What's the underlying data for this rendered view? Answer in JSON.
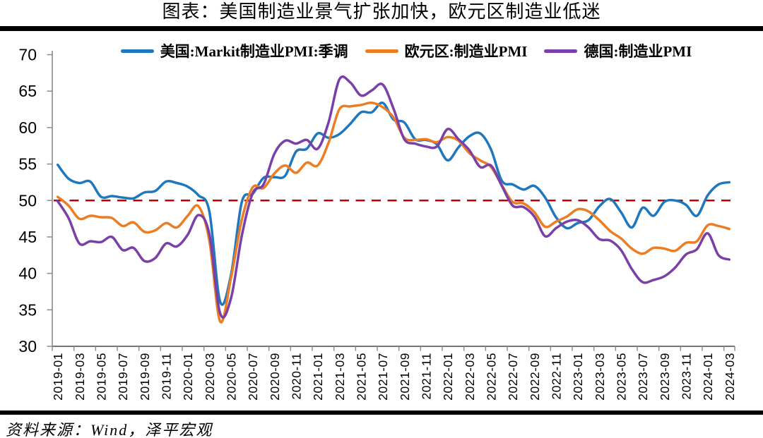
{
  "title": "图表：美国制造业景气扩张加快，欧元区制造业低迷",
  "source": "资料来源：Wind，泽平宏观",
  "colors": {
    "us_line": "#1F78BE",
    "eurozone_line": "#ED7D23",
    "germany_line": "#7B3FA8",
    "reference_line": "#C00000",
    "y_axis": "#8C8C8C",
    "x_axis": "#757575",
    "text": "#000000",
    "divider": "#000000"
  },
  "chart_data": {
    "type": "line",
    "title": "图表：美国制造业景气扩张加快，欧元区制造业低迷",
    "xlabel": "",
    "ylabel": "",
    "ylim": [
      30,
      70
    ],
    "ytick_step": 5,
    "yticks": [
      30,
      35,
      40,
      45,
      50,
      55,
      60,
      65,
      70
    ],
    "xtick_every": 2,
    "grid": false,
    "legend_position": "top",
    "smoothed": true,
    "reference_line": {
      "value": 50,
      "style": "dashed",
      "color": "#C00000"
    },
    "x": [
      "2019-01",
      "2019-02",
      "2019-03",
      "2019-04",
      "2019-05",
      "2019-06",
      "2019-07",
      "2019-08",
      "2019-09",
      "2019-10",
      "2019-11",
      "2019-12",
      "2020-01",
      "2020-02",
      "2020-03",
      "2020-04",
      "2020-05",
      "2020-06",
      "2020-07",
      "2020-08",
      "2020-09",
      "2020-10",
      "2020-11",
      "2020-12",
      "2021-01",
      "2021-02",
      "2021-03",
      "2021-04",
      "2021-05",
      "2021-06",
      "2021-07",
      "2021-08",
      "2021-09",
      "2021-10",
      "2021-11",
      "2021-12",
      "2022-01",
      "2022-02",
      "2022-03",
      "2022-04",
      "2022-05",
      "2022-06",
      "2022-07",
      "2022-08",
      "2022-09",
      "2022-10",
      "2022-11",
      "2022-12",
      "2023-01",
      "2023-02",
      "2023-03",
      "2023-04",
      "2023-05",
      "2023-06",
      "2023-07",
      "2023-08",
      "2023-09",
      "2023-10",
      "2023-11",
      "2023-12",
      "2024-01",
      "2024-02",
      "2024-03"
    ],
    "series": [
      {
        "name": "美国:Markit制造业PMI:季调",
        "key": "series-us",
        "color": "#1F78BE",
        "values": [
          54.9,
          53.0,
          52.4,
          52.6,
          50.5,
          50.6,
          50.4,
          50.3,
          51.1,
          51.3,
          52.6,
          52.4,
          51.9,
          50.7,
          48.5,
          36.1,
          39.8,
          49.8,
          50.9,
          53.1,
          53.2,
          53.4,
          56.7,
          57.1,
          59.2,
          58.6,
          59.1,
          60.5,
          62.1,
          62.1,
          63.4,
          61.1,
          60.7,
          58.4,
          58.3,
          57.7,
          55.5,
          57.3,
          58.8,
          59.2,
          57.0,
          52.7,
          52.2,
          51.5,
          52.0,
          50.4,
          47.7,
          46.2,
          46.9,
          47.3,
          49.2,
          50.2,
          48.4,
          46.3,
          49.0,
          47.9,
          49.8,
          50.0,
          49.4,
          47.9,
          50.7,
          52.2,
          52.5
        ]
      },
      {
        "name": "欧元区:制造业PMI",
        "key": "series-eurozone",
        "color": "#ED7D23",
        "values": [
          50.5,
          49.3,
          47.5,
          47.9,
          47.7,
          47.6,
          46.5,
          47.0,
          45.7,
          45.9,
          46.9,
          46.3,
          47.9,
          49.2,
          44.5,
          33.4,
          39.4,
          47.4,
          51.8,
          51.7,
          53.7,
          54.8,
          53.8,
          55.2,
          54.8,
          57.9,
          62.5,
          62.9,
          63.1,
          63.4,
          62.8,
          61.4,
          58.6,
          58.3,
          58.4,
          58.0,
          58.7,
          58.2,
          56.5,
          55.5,
          54.6,
          52.1,
          49.8,
          49.6,
          48.4,
          46.4,
          47.1,
          47.8,
          48.8,
          48.5,
          47.3,
          45.8,
          44.8,
          43.4,
          42.7,
          43.5,
          43.4,
          43.1,
          44.2,
          44.4,
          46.6,
          46.5,
          46.1
        ]
      },
      {
        "name": "德国:制造业PMI",
        "key": "series-germany",
        "color": "#7B3FA8",
        "values": [
          49.9,
          47.6,
          44.1,
          44.4,
          44.3,
          45.0,
          43.2,
          43.5,
          41.7,
          42.1,
          44.1,
          43.7,
          45.3,
          48.0,
          45.4,
          34.5,
          36.6,
          45.2,
          51.0,
          52.2,
          56.4,
          58.2,
          57.8,
          58.3,
          57.1,
          60.7,
          66.6,
          66.2,
          64.4,
          65.1,
          65.9,
          62.6,
          58.4,
          57.8,
          57.4,
          57.4,
          59.8,
          58.4,
          56.9,
          54.6,
          54.8,
          52.0,
          49.3,
          49.1,
          47.8,
          45.1,
          46.2,
          47.1,
          47.3,
          46.3,
          44.7,
          44.5,
          43.2,
          40.6,
          38.8,
          39.1,
          39.6,
          40.8,
          42.6,
          43.3,
          45.5,
          42.5,
          41.9
        ]
      }
    ]
  }
}
